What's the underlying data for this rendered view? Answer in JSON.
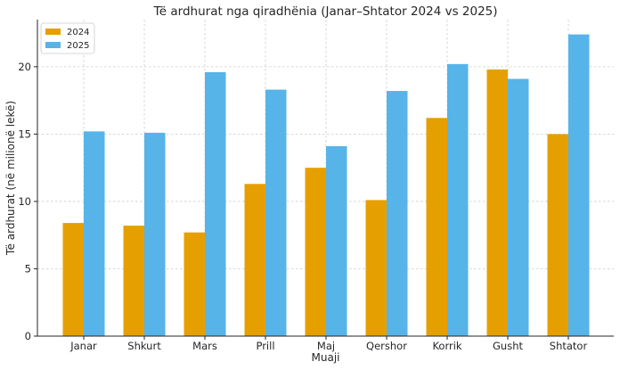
{
  "chart_data": {
    "type": "bar",
    "title": "Të ardhurat nga qiradhënia (Janar–Shtator 2024 vs 2025)",
    "xlabel": "Muaji",
    "ylabel": "Të ardhurat (në milionë lekë)",
    "categories": [
      "Janar",
      "Shkurt",
      "Mars",
      "Prill",
      "Maj",
      "Qershor",
      "Korrik",
      "Gusht",
      "Shtator"
    ],
    "series": [
      {
        "name": "2024",
        "color": "#E69F00",
        "values": [
          8.4,
          8.2,
          7.7,
          11.3,
          12.5,
          10.1,
          16.2,
          19.8,
          15.0
        ]
      },
      {
        "name": "2025",
        "color": "#56B4E9",
        "values": [
          15.2,
          15.1,
          19.6,
          18.3,
          14.1,
          18.2,
          20.2,
          19.1,
          22.4
        ]
      }
    ],
    "ylim": [
      0,
      23.5
    ],
    "yticks": [
      0,
      5,
      10,
      15,
      20
    ],
    "grid": true,
    "legend_position": "top-left"
  }
}
